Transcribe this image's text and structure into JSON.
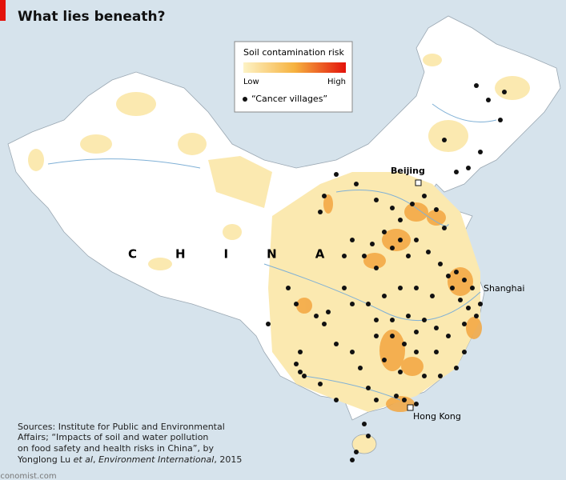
{
  "header": {
    "title": "What lies beneath?"
  },
  "legend": {
    "title": "Soil contamination risk",
    "low": "Low",
    "high": "High",
    "dots": "“Cancer villages”"
  },
  "labels": {
    "country": "CHINA",
    "cities": [
      "Beijing",
      "Shanghai",
      "Hong Kong"
    ]
  },
  "source": {
    "lines": [
      "Sources: Institute for Public and Environmental",
      "Affairs; “Impacts of soil and water pollution",
      "on food safety and health risks in China”, by"
    ],
    "last": [
      "Yonglong Lu ",
      "et al",
      ", ",
      "Environment International",
      ", 2015"
    ]
  },
  "footer": "Economist.com"
}
